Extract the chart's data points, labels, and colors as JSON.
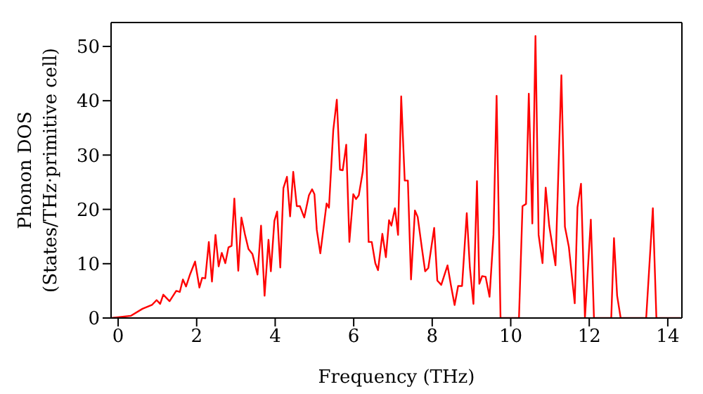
{
  "chart_data": {
    "type": "line",
    "xlabel": "Frequency (THz)",
    "ylabel": "Phonon DOS\n(States/THz·primitive cell)",
    "xlim": [
      -0.18,
      14.36
    ],
    "ylim": [
      0,
      54.4
    ],
    "xticks": [
      0,
      2,
      4,
      6,
      8,
      10,
      12,
      14
    ],
    "yticks": [
      0,
      10,
      20,
      30,
      40,
      50
    ],
    "marker": "none",
    "line_style": "solid",
    "series": [
      {
        "color": "#ff0000",
        "x": [
          -0.18,
          0.32,
          0.62,
          0.86,
          0.98,
          1.07,
          1.15,
          1.31,
          1.48,
          1.57,
          1.65,
          1.73,
          1.83,
          1.96,
          2.07,
          2.14,
          2.22,
          2.31,
          2.39,
          2.48,
          2.56,
          2.64,
          2.73,
          2.81,
          2.89,
          2.96,
          3.06,
          3.14,
          3.23,
          3.32,
          3.42,
          3.55,
          3.64,
          3.73,
          3.83,
          3.89,
          3.98,
          4.05,
          4.13,
          4.21,
          4.3,
          4.38,
          4.46,
          4.55,
          4.63,
          4.74,
          4.86,
          4.94,
          5.0,
          5.06,
          5.15,
          5.31,
          5.37,
          5.48,
          5.57,
          5.65,
          5.72,
          5.81,
          5.89,
          5.99,
          6.06,
          6.13,
          6.23,
          6.31,
          6.38,
          6.46,
          6.55,
          6.62,
          6.73,
          6.82,
          6.9,
          6.96,
          7.05,
          7.13,
          7.21,
          7.3,
          7.38,
          7.46,
          7.56,
          7.63,
          7.74,
          7.82,
          7.9,
          8.05,
          8.13,
          8.23,
          8.39,
          8.48,
          8.57,
          8.66,
          8.76,
          8.88,
          8.96,
          9.05,
          9.14,
          9.2,
          9.27,
          9.36,
          9.46,
          9.56,
          9.64,
          9.74,
          10.21,
          10.3,
          10.39,
          10.46,
          10.55,
          10.63,
          10.71,
          10.81,
          10.89,
          10.98,
          11.14,
          11.29,
          11.38,
          11.48,
          11.63,
          11.7,
          11.79,
          11.89,
          12.04,
          12.12,
          12.56,
          12.63,
          12.71,
          12.8,
          13.45,
          13.62,
          13.71,
          14.32
        ],
        "values": [
          0,
          0.4,
          1.7,
          2.4,
          3.3,
          2.6,
          4.3,
          3.1,
          5.0,
          4.8,
          7.1,
          5.8,
          8.0,
          10.4,
          5.6,
          7.4,
          7.3,
          14.0,
          6.7,
          15.3,
          9.5,
          12.0,
          10.1,
          13.0,
          13.3,
          22.0,
          8.7,
          18.5,
          15.4,
          12.7,
          11.8,
          8.0,
          17.0,
          4.1,
          14.4,
          8.6,
          17.9,
          19.6,
          9.3,
          23.9,
          26.0,
          18.7,
          26.9,
          20.6,
          20.6,
          18.5,
          22.6,
          23.7,
          22.8,
          16.2,
          11.9,
          21.1,
          20.3,
          34.6,
          40.2,
          27.3,
          27.2,
          31.9,
          14.0,
          22.8,
          21.9,
          22.6,
          26.9,
          33.8,
          14.0,
          14.0,
          10.1,
          8.8,
          15.5,
          11.2,
          18.0,
          17.0,
          20.2,
          15.3,
          40.8,
          25.3,
          25.3,
          7.1,
          19.8,
          18.6,
          12.7,
          8.6,
          9.2,
          16.6,
          6.9,
          6.1,
          9.7,
          5.9,
          2.4,
          5.9,
          5.9,
          19.3,
          9.2,
          2.6,
          25.2,
          6.3,
          7.7,
          7.6,
          3.9,
          15.3,
          40.9,
          0,
          0,
          20.6,
          21.0,
          41.3,
          17.4,
          51.9,
          15.3,
          10.1,
          24.0,
          17.0,
          9.7,
          44.7,
          16.8,
          13.1,
          2.7,
          20.4,
          24.7,
          0,
          18.1,
          0,
          0,
          14.7,
          4.1,
          0,
          0,
          20.2,
          0,
          0
        ]
      }
    ]
  }
}
